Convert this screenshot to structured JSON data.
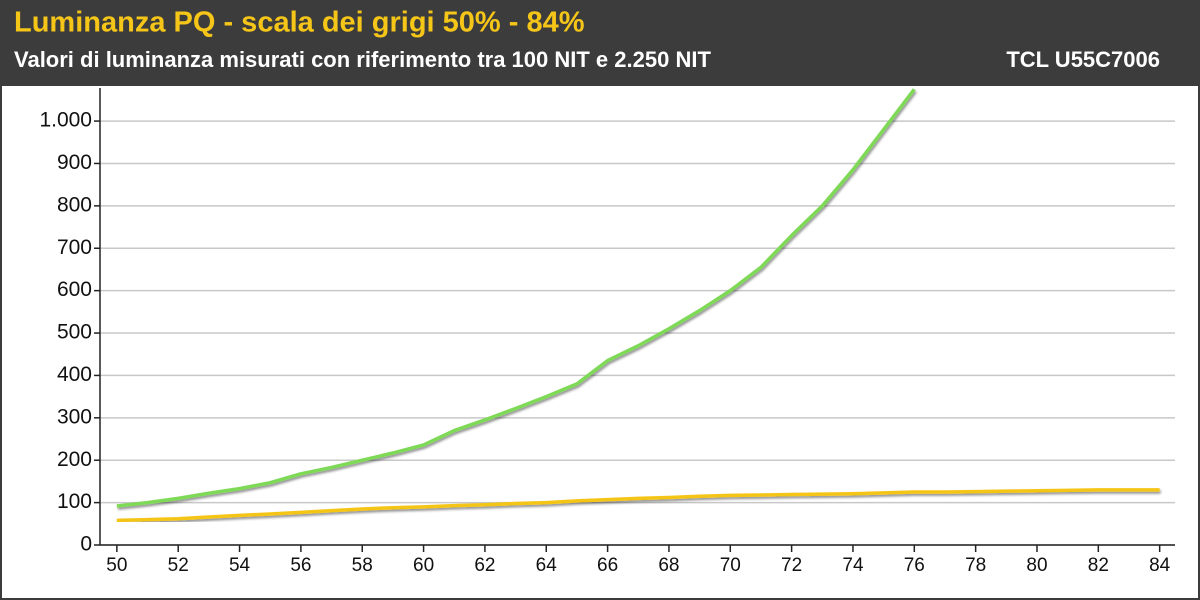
{
  "chart_data": {
    "type": "line",
    "title": "Luminanza PQ - scala dei grigi 50% - 84%",
    "subtitle": "Valori di luminanza misurati con riferimento tra 100 NIT e 2.250 NIT",
    "annotation": "TCL U55C7006",
    "x": [
      50,
      51,
      52,
      53,
      54,
      55,
      56,
      57,
      58,
      59,
      60,
      61,
      62,
      63,
      64,
      65,
      66,
      67,
      68,
      69,
      70,
      71,
      72,
      73,
      74,
      75,
      76,
      77,
      78,
      79,
      80,
      81,
      82,
      83,
      84
    ],
    "series": [
      {
        "color": "#7ed957",
        "values": [
          92,
          100,
          110,
          122,
          133,
          147,
          168,
          183,
          200,
          217,
          236,
          270,
          295,
          322,
          350,
          380,
          435,
          470,
          510,
          553,
          600,
          655,
          730,
          800,
          885,
          980,
          1075,
          null,
          null,
          null,
          null,
          null,
          null,
          null,
          null
        ]
      },
      {
        "color": "#f5c518",
        "values": [
          58,
          60,
          62,
          66,
          70,
          73,
          77,
          81,
          85,
          88,
          90,
          93,
          95,
          98,
          100,
          104,
          107,
          110,
          112,
          115,
          117,
          118,
          119,
          120,
          121,
          123,
          125,
          125,
          126,
          127,
          128,
          129,
          130,
          130,
          130
        ]
      }
    ],
    "xlim": [
      49.45,
      84.5
    ],
    "ylim": [
      0,
      1078
    ],
    "xticks": [
      50,
      52,
      54,
      56,
      58,
      60,
      62,
      64,
      66,
      68,
      70,
      72,
      74,
      76,
      78,
      80,
      82,
      84
    ],
    "yticks": [
      0,
      100,
      200,
      300,
      400,
      500,
      600,
      700,
      800,
      900,
      {
        "value": 1000,
        "label": "1.000"
      }
    ],
    "grid": true
  }
}
